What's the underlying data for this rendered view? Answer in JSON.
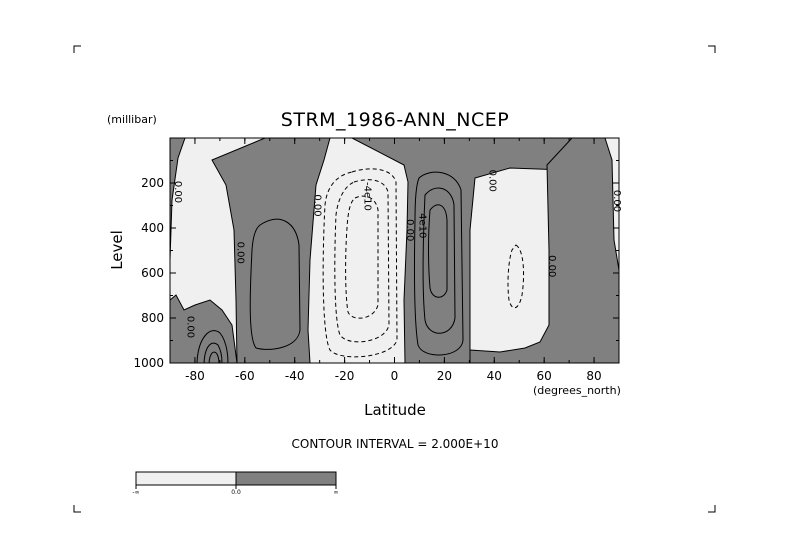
{
  "chart_data": {
    "type": "contour",
    "title": "STRM_1986-ANN_NCEP",
    "xlabel": "Latitude",
    "x_units": "(degrees_north)",
    "ylabel": "Level",
    "y_units": "(millibar)",
    "xlim": [
      -90,
      90
    ],
    "ylim": [
      1000,
      0
    ],
    "x_ticks": [
      -80,
      -60,
      -40,
      -20,
      0,
      20,
      40,
      60,
      80
    ],
    "y_ticks": [
      200,
      400,
      600,
      800,
      1000
    ],
    "contour_interval_text": "CONTOUR INTERVAL = 2.000E+10",
    "contour_labels": [
      {
        "text": "0.00",
        "lat": -88,
        "level": 240
      },
      {
        "text": "0.00",
        "lat": -63,
        "level": 510
      },
      {
        "text": "0.00",
        "lat": -32,
        "level": 300
      },
      {
        "text": "0.00",
        "lat": -83,
        "level": 840
      },
      {
        "text": "-4e10",
        "lat": -12,
        "level": 260
      },
      {
        "text": "0.00",
        "lat": 5,
        "level": 410
      },
      {
        "text": "4e10",
        "lat": 10,
        "level": 390
      },
      {
        "text": "0.00",
        "lat": 38,
        "level": 190
      },
      {
        "text": "0.00",
        "lat": 62,
        "level": 570
      },
      {
        "text": "0.00",
        "lat": 88,
        "level": 280
      }
    ],
    "shading": {
      "negative": "#f0f0f0",
      "positive": "#808080",
      "line": "#000000"
    },
    "colorbar": {
      "labels": [
        "-∞",
        "0.0",
        "∞"
      ]
    }
  }
}
